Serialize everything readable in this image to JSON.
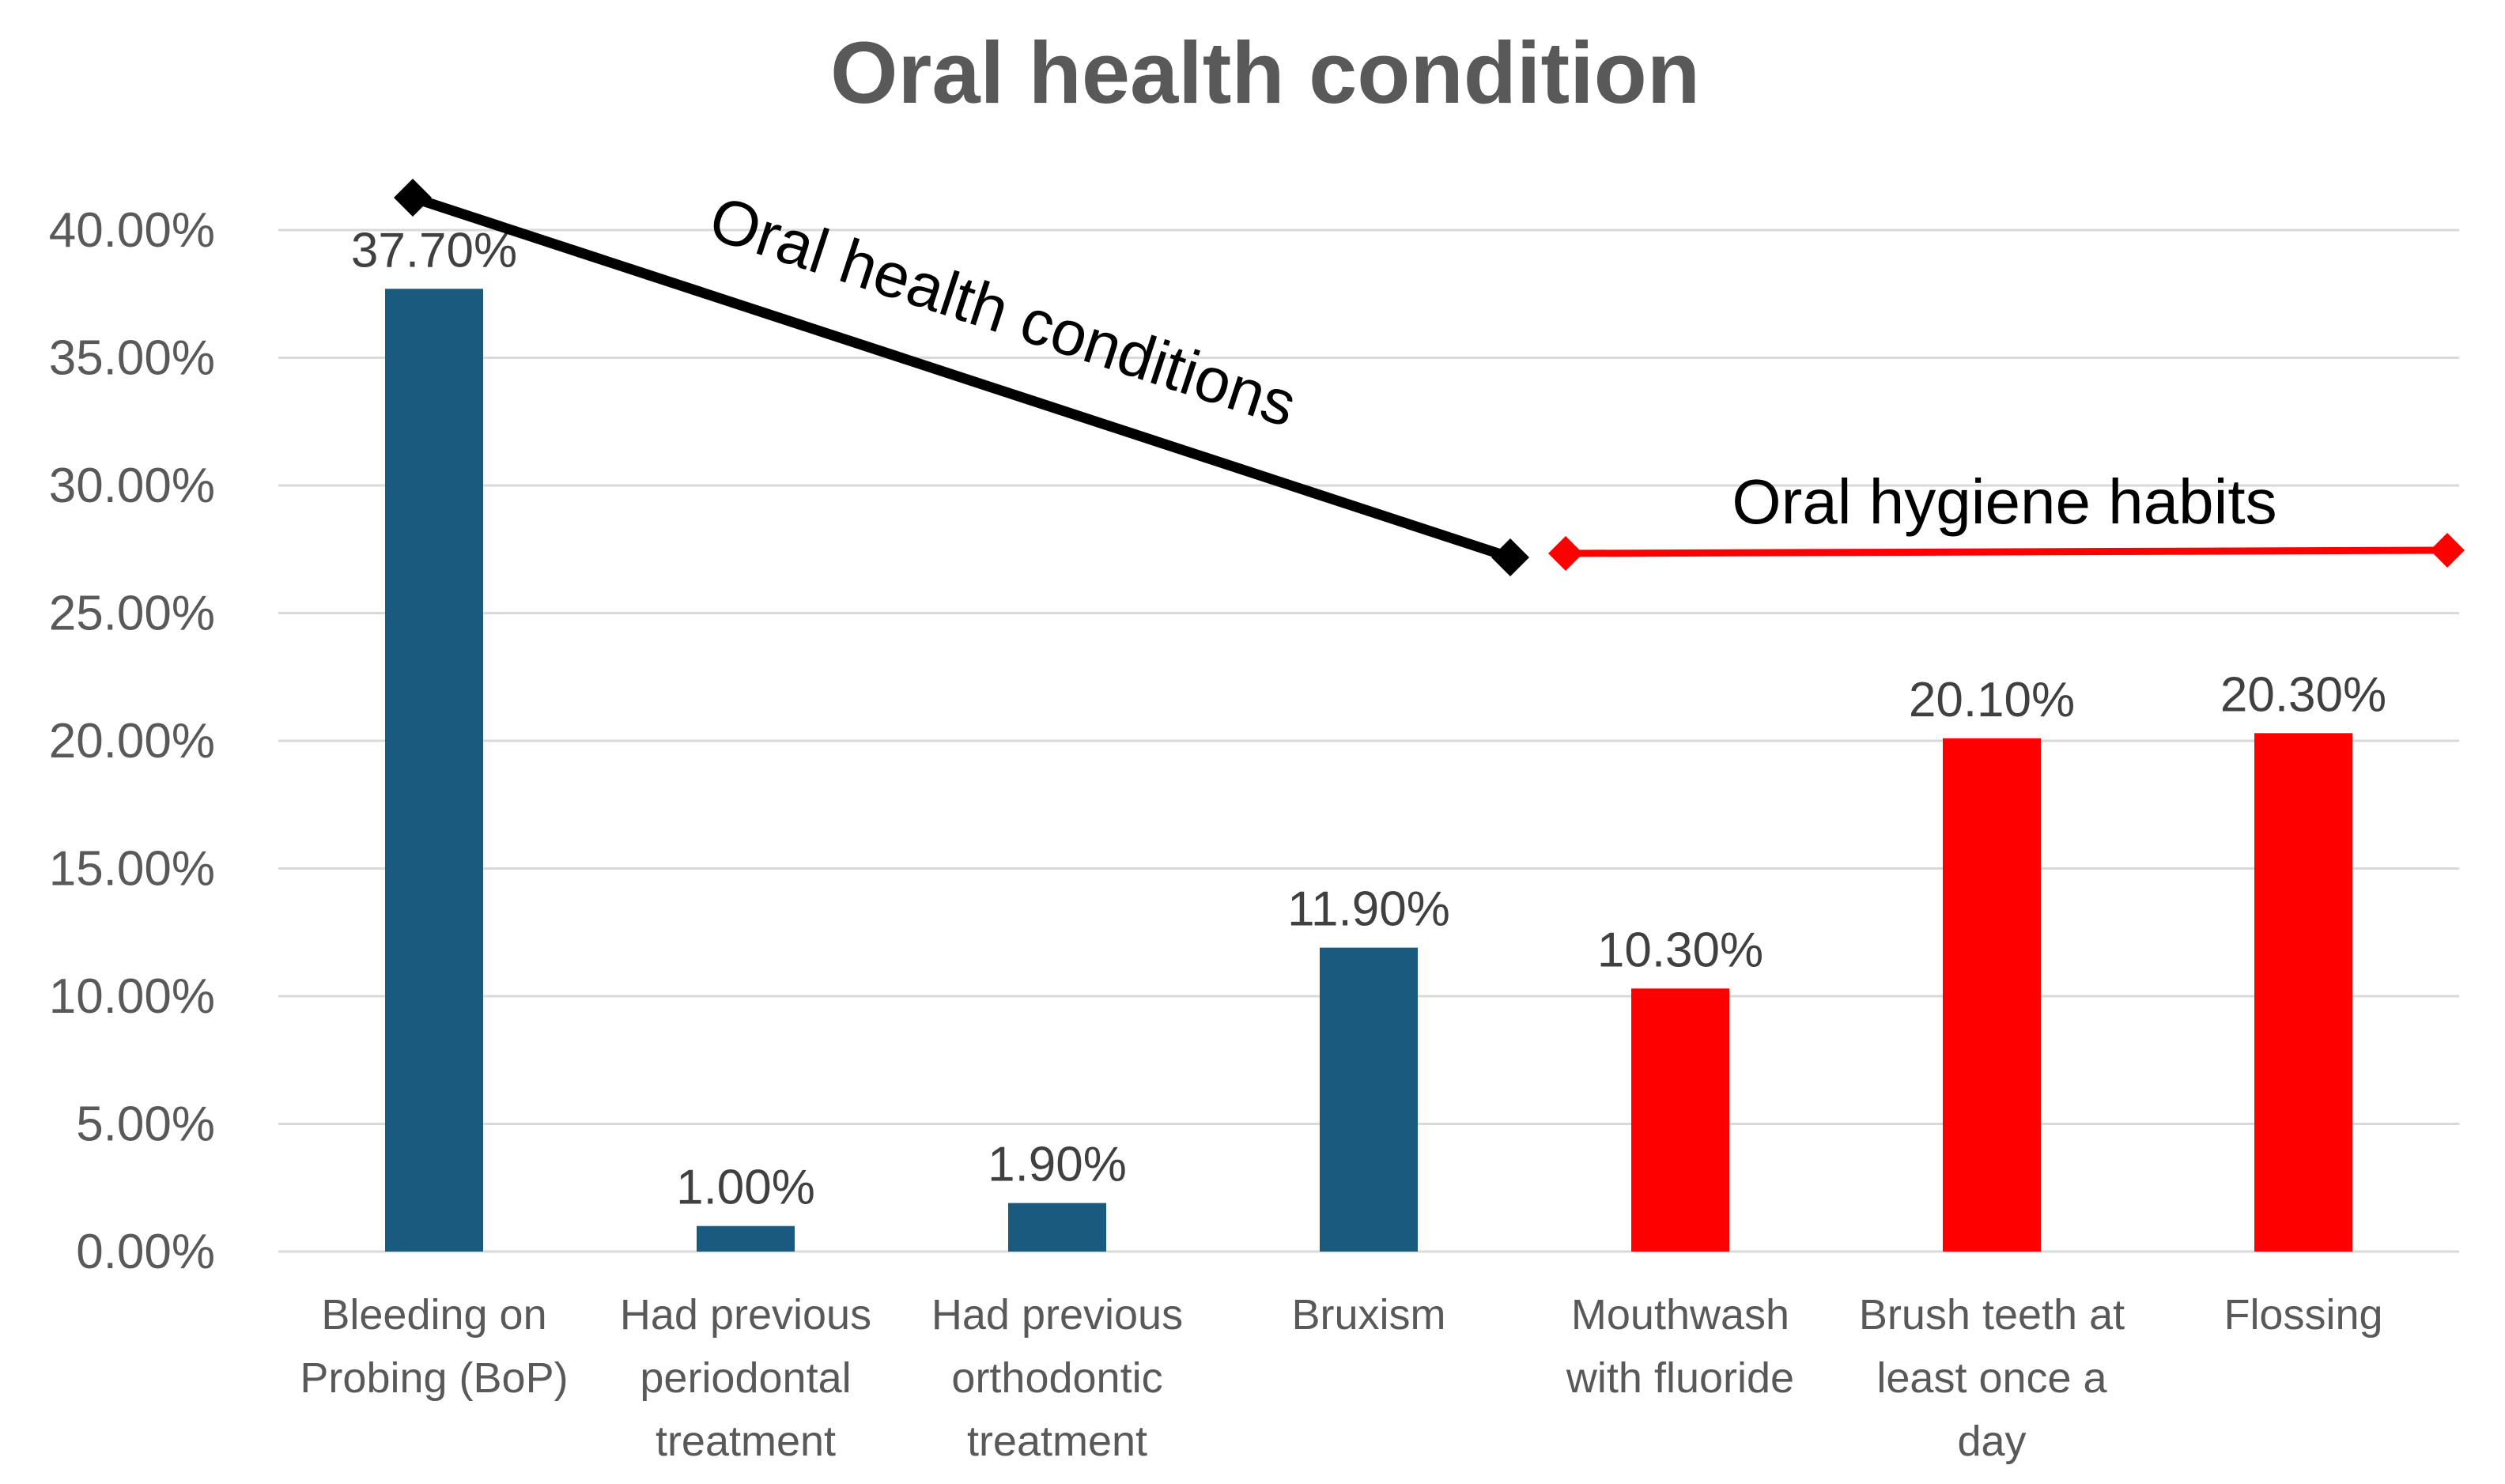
{
  "chart_data": {
    "type": "bar",
    "title": "Oral health condition",
    "xlabel": "",
    "ylabel": "",
    "ylim": [
      0,
      40
    ],
    "yticks": [
      0,
      5,
      10,
      15,
      20,
      25,
      30,
      35,
      40
    ],
    "ytick_labels": [
      "0.00%",
      "5.00%",
      "10.00%",
      "15.00%",
      "20.00%",
      "25.00%",
      "30.00%",
      "35.00%",
      "40.00%"
    ],
    "grid": true,
    "categories": [
      [
        "Bleeding on",
        "Probing (BoP)"
      ],
      [
        "Had previous",
        "periodontal",
        "treatment"
      ],
      [
        "Had previous",
        "orthodontic",
        "treatment"
      ],
      [
        "Bruxism"
      ],
      [
        "Mouthwash",
        "with fluoride"
      ],
      [
        "Brush teeth at",
        "least once a",
        "day"
      ],
      [
        "Flossing"
      ]
    ],
    "values": [
      37.7,
      1.0,
      1.9,
      11.9,
      10.3,
      20.1,
      20.3
    ],
    "data_labels": [
      "37.70%",
      "1.00%",
      "1.90%",
      "11.90%",
      "10.30%",
      "20.10%",
      "20.30%"
    ],
    "groups": [
      "conditions",
      "conditions",
      "conditions",
      "conditions",
      "habits",
      "habits",
      "habits"
    ],
    "colors": {
      "conditions": "#1a5a7e",
      "habits": "#ff0000",
      "conditions_arrow": "#000000"
    },
    "annotations": [
      {
        "text": "Oral health conditions",
        "group": "conditions"
      },
      {
        "text": "Oral hygiene habits",
        "group": "habits"
      }
    ]
  }
}
